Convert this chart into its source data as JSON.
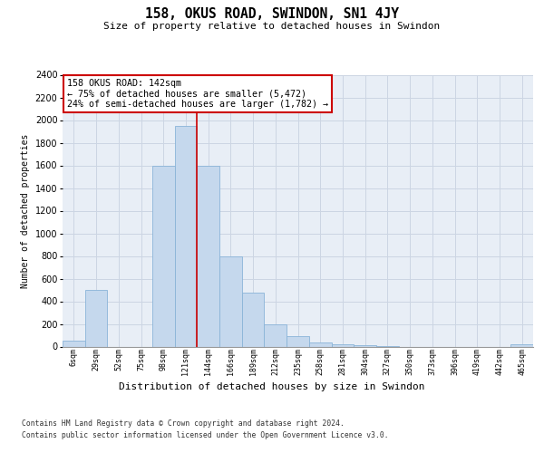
{
  "title": "158, OKUS ROAD, SWINDON, SN1 4JY",
  "subtitle": "Size of property relative to detached houses in Swindon",
  "xlabel": "Distribution of detached houses by size in Swindon",
  "ylabel": "Number of detached properties",
  "bin_labels": [
    "6sqm",
    "29sqm",
    "52sqm",
    "75sqm",
    "98sqm",
    "121sqm",
    "144sqm",
    "166sqm",
    "189sqm",
    "212sqm",
    "235sqm",
    "258sqm",
    "281sqm",
    "304sqm",
    "327sqm",
    "350sqm",
    "373sqm",
    "396sqm",
    "419sqm",
    "442sqm",
    "465sqm"
  ],
  "bar_values": [
    50,
    500,
    0,
    0,
    1600,
    1950,
    1600,
    800,
    480,
    200,
    90,
    35,
    20,
    10,
    5,
    0,
    0,
    0,
    0,
    0,
    20
  ],
  "bar_color": "#c5d8ed",
  "bar_edge_color": "#8ab4d8",
  "vline_color": "#cc0000",
  "annotation_text": "158 OKUS ROAD: 142sqm\n← 75% of detached houses are smaller (5,472)\n24% of semi-detached houses are larger (1,782) →",
  "annotation_box_color": "#ffffff",
  "annotation_box_edge": "#cc0000",
  "ylim": [
    0,
    2400
  ],
  "grid_color": "#ccd5e3",
  "bg_color": "#e8eef6",
  "footer1": "Contains HM Land Registry data © Crown copyright and database right 2024.",
  "footer2": "Contains public sector information licensed under the Open Government Licence v3.0."
}
